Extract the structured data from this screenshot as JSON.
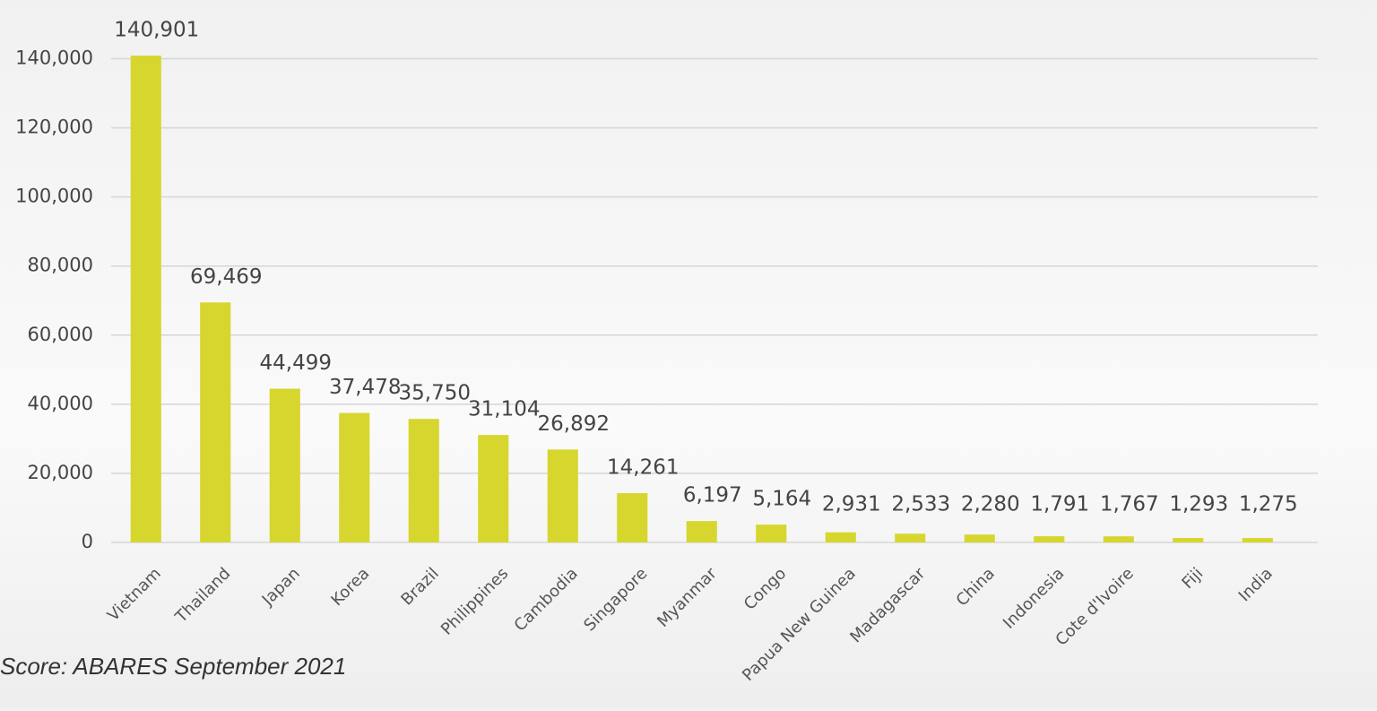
{
  "chart_data": {
    "type": "bar",
    "categories": [
      "Vietnam",
      "Thailand",
      "Japan",
      "Korea",
      "Brazil",
      "Philippines",
      "Cambodia",
      "Singapore",
      "Myanmar",
      "Congo",
      "Papua New Guinea",
      "Madagascar",
      "China",
      "Indonesia",
      "Cote d'Ivoire",
      "Fiji",
      "India"
    ],
    "values": [
      140901,
      69469,
      44499,
      37478,
      35750,
      31104,
      26892,
      14261,
      6197,
      5164,
      2931,
      2533,
      2280,
      1791,
      1767,
      1293,
      1275
    ],
    "value_labels": [
      "140,901",
      "69,469",
      "44,499",
      "37,478",
      "35,750",
      "31,104",
      "26,892",
      "14,261",
      "6,197",
      "5,164",
      "2,931",
      "2,533",
      "2,280",
      "1,791",
      "1,767",
      "1,293",
      "1,275"
    ],
    "color": "#d6d62e",
    "ylim": [
      0,
      150000
    ],
    "yticks": [
      0,
      {
        "value": 20000,
        "label": "20,000"
      },
      {
        "value": 40000,
        "label": "40,000"
      },
      {
        "value": 60000,
        "label": "60,000"
      },
      {
        "value": 80000,
        "label": "80,000"
      },
      {
        "value": 100000,
        "label": "100,000"
      },
      {
        "value": 120000,
        "label": "120,000"
      },
      {
        "value": 140000,
        "label": "140,000"
      }
    ],
    "grid": true,
    "source": "Score: ABARES September 2021"
  }
}
